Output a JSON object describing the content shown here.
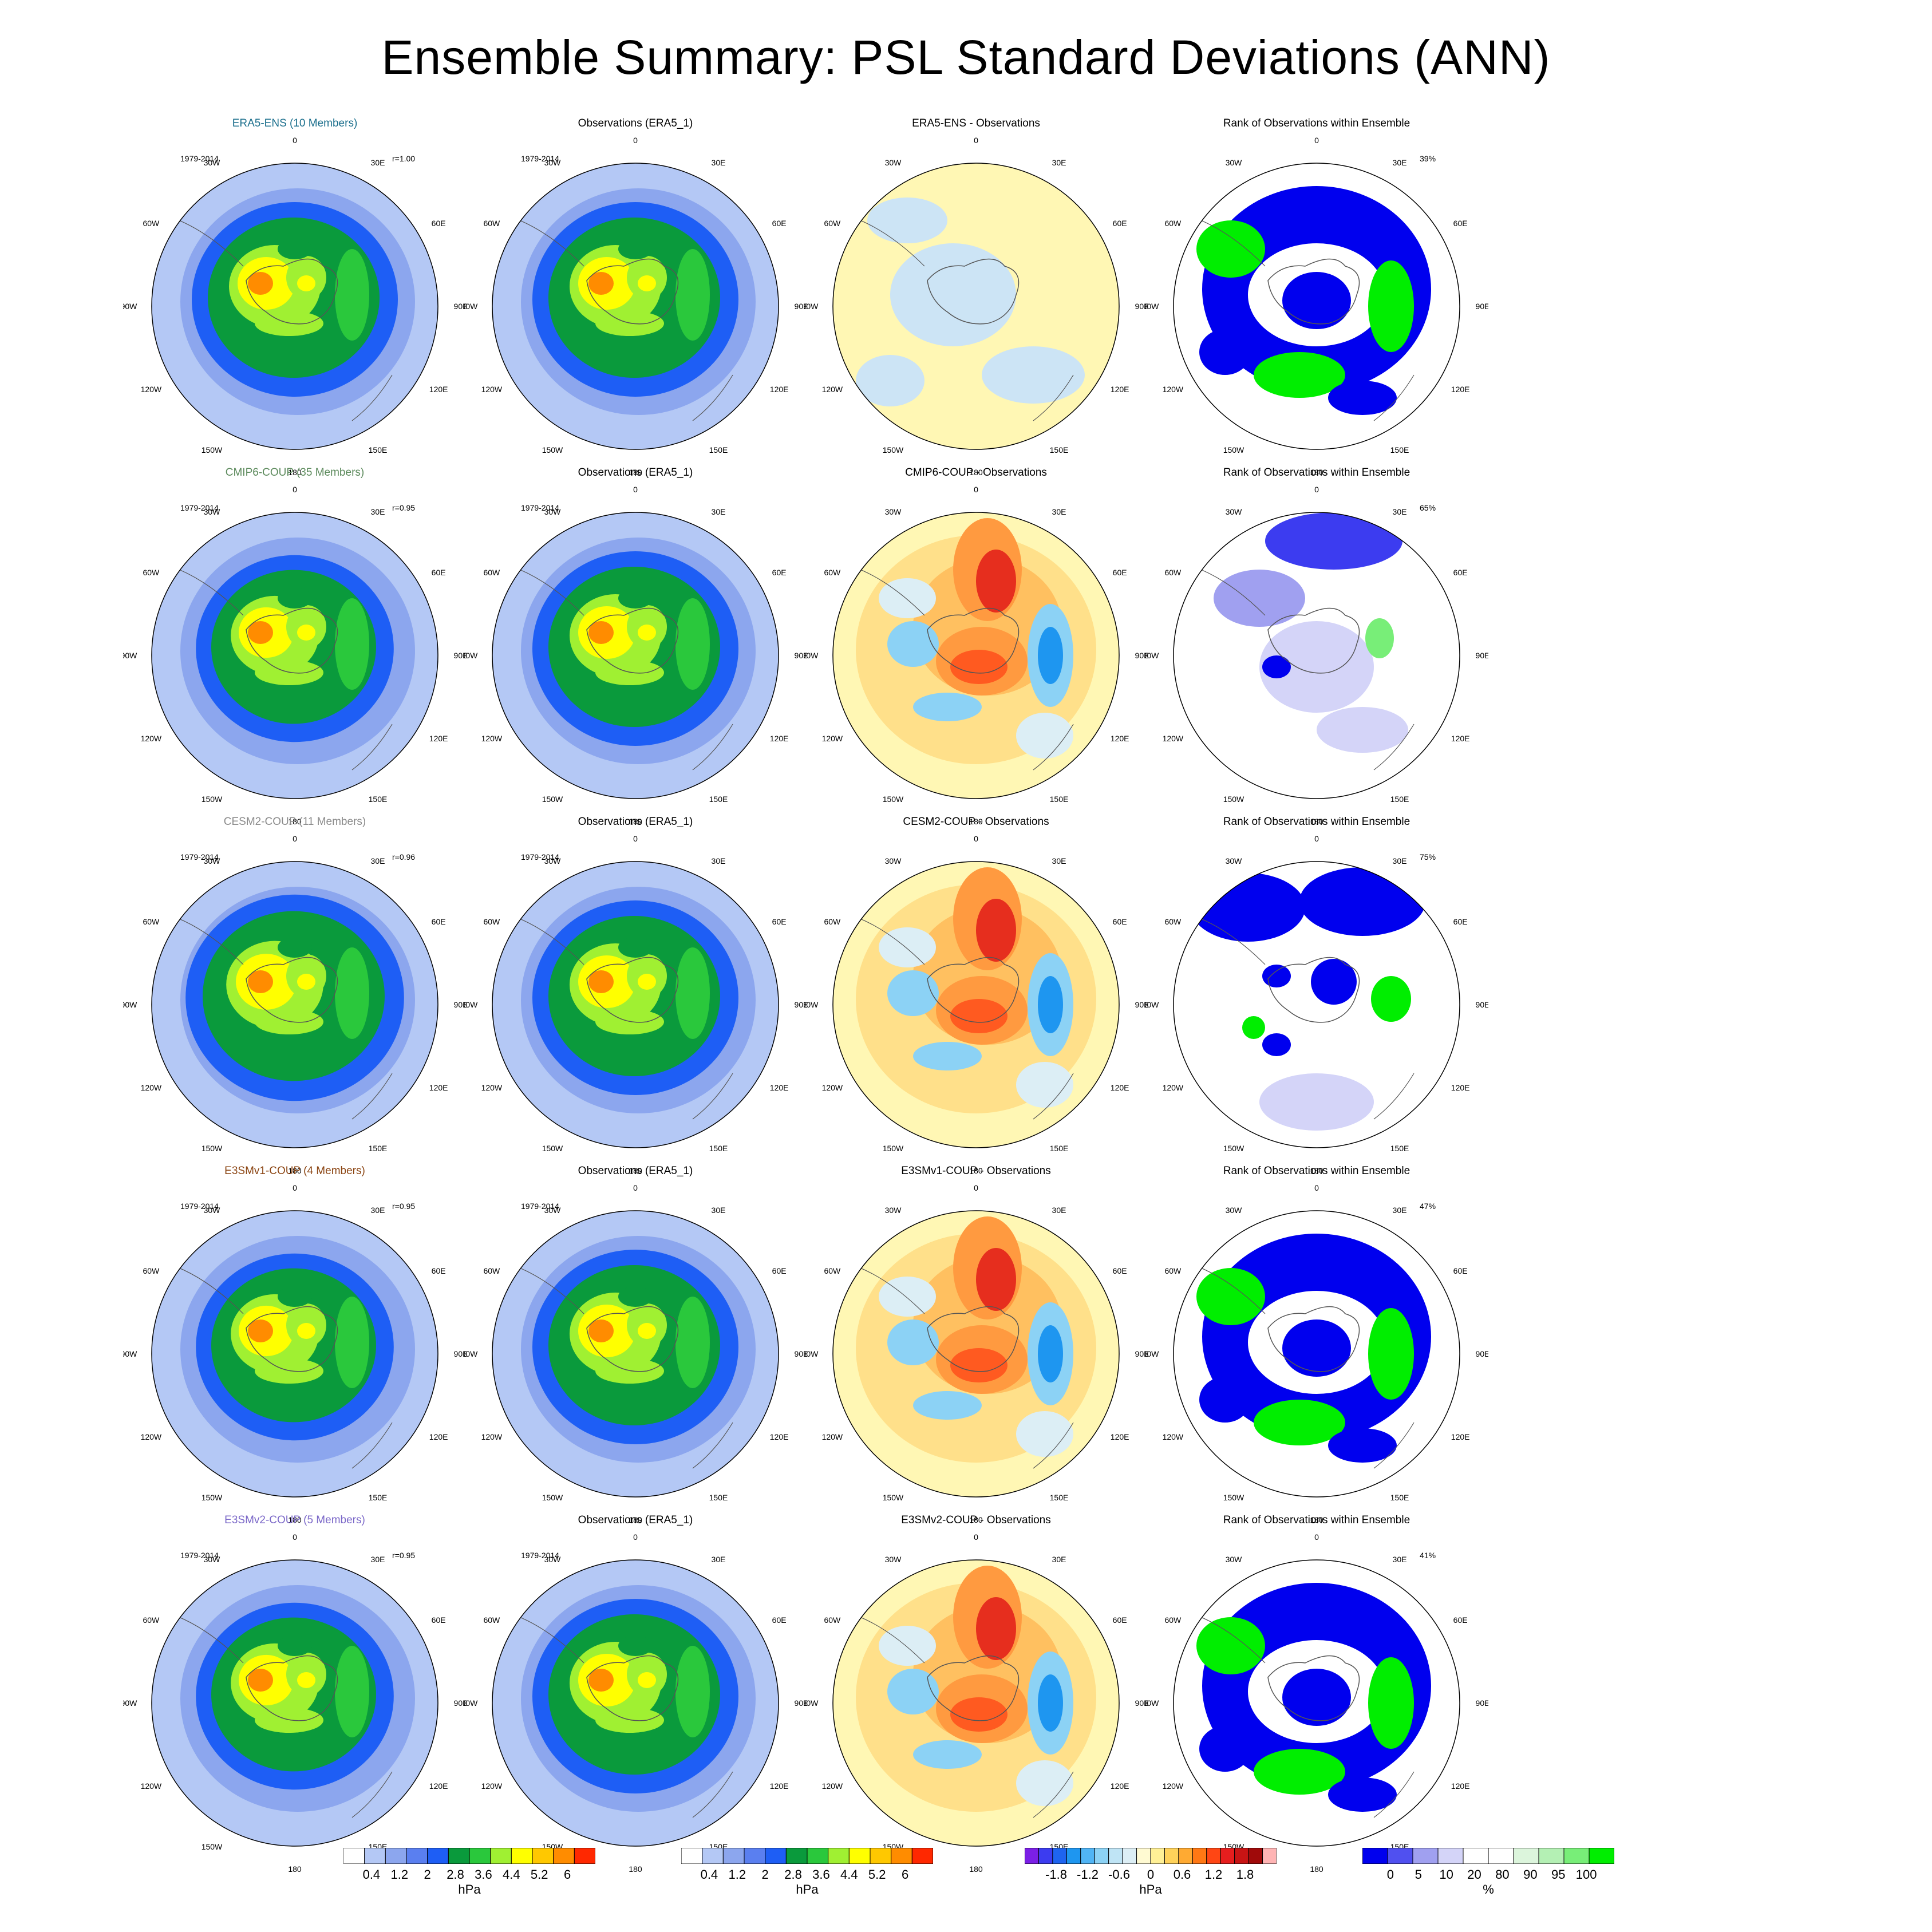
{
  "title": "Ensemble Summary: PSL Standard Deviations (ANN)",
  "period": "1979-2014",
  "obs_title": "Observations (ERA5_1)",
  "rank_title": "Rank of Observations within Ensemble",
  "lon_labels": [
    "0",
    "30E",
    "60E",
    "90E",
    "120E",
    "150E",
    "180",
    "150W",
    "120W",
    "90W",
    "60W",
    "30W"
  ],
  "rows": [
    {
      "model": "ERA5-ENS (10 Members)",
      "model_color": "#1a6e8c",
      "corr": "r=1.00",
      "diff_title": "ERA5-ENS - Observations",
      "rank_pct": "39%"
    },
    {
      "model": "CMIP6-COUP (35 Members)",
      "model_color": "#5c8a5c",
      "corr": "r=0.95",
      "diff_title": "CMIP6-COUP - Observations",
      "rank_pct": "65%"
    },
    {
      "model": "CESM2-COUP (11 Members)",
      "model_color": "#8a8a8a",
      "corr": "r=0.96",
      "diff_title": "CESM2-COUP - Observations",
      "rank_pct": "75%"
    },
    {
      "model": "E3SMv1-COUP (4 Members)",
      "model_color": "#8b4513",
      "corr": "r=0.95",
      "diff_title": "E3SMv1-COUP - Observations",
      "rank_pct": "47%"
    },
    {
      "model": "E3SMv2-COUP (5 Members)",
      "model_color": "#7b68c8",
      "corr": "r=0.95",
      "diff_title": "E3SMv2-COUP - Observations",
      "rank_pct": "41%"
    }
  ],
  "legends": {
    "std": {
      "unit": "hPa",
      "ticks": [
        "0.4",
        "1.2",
        "2",
        "2.8",
        "3.6",
        "4.4",
        "5.2",
        "6"
      ],
      "colors": [
        "#ffffff",
        "#b4c8f5",
        "#8ca6ee",
        "#5a7ff0",
        "#1e5ef5",
        "#0a9a3c",
        "#2ac83c",
        "#a0f032",
        "#ffff00",
        "#ffc800",
        "#ff8c00",
        "#ff2800"
      ]
    },
    "diff": {
      "unit": "hPa",
      "ticks": [
        "-1.8",
        "-1.2",
        "-0.6",
        "0",
        "0.6",
        "1.2",
        "1.8"
      ],
      "colors": [
        "#7b1fe6",
        "#3c3cf0",
        "#1e64f0",
        "#1e96f0",
        "#50b4f5",
        "#8cd2f5",
        "#bfe4f5",
        "#dceef5",
        "#fffad2",
        "#fff096",
        "#ffd25a",
        "#ffaa32",
        "#ff7814",
        "#ff4614",
        "#e61e1e",
        "#c81414",
        "#a00a0a",
        "#ffb4b4"
      ]
    },
    "rank": {
      "unit": "%",
      "ticks": [
        "0",
        "5",
        "10",
        "20",
        "80",
        "90",
        "95",
        "100"
      ],
      "colors": [
        "#0000ee",
        "#5050f0",
        "#a0a0f0",
        "#d4d4f8",
        "#ffffff",
        "#ffffff",
        "#dcf5dc",
        "#b4f0b4",
        "#78ee78",
        "#00ee00"
      ]
    }
  }
}
